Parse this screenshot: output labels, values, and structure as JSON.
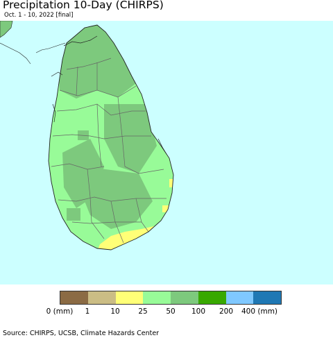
{
  "title": "Precipitation 10-Day (CHIRPS)",
  "subtitle": "Oct. 1 - 10, 2022 [final]",
  "source": "Source: CHIRPS, UCSB, Climate Hazards Center",
  "colors": {
    "ocean": "#ccffff",
    "coast": "#222222",
    "district_border": "#666666"
  },
  "legend": {
    "swatches": [
      {
        "range": "0-1",
        "color": "#8b6b44"
      },
      {
        "range": "1-10",
        "color": "#cbbd85"
      },
      {
        "range": "10-25",
        "color": "#ffff77"
      },
      {
        "range": "25-50",
        "color": "#98fb98"
      },
      {
        "range": "50-100",
        "color": "#7dc97d"
      },
      {
        "range": "100-200",
        "color": "#38a800"
      },
      {
        "range": "200-400",
        "color": "#7fc8ff"
      },
      {
        "range": "400+",
        "color": "#1f78b4"
      }
    ],
    "labels": [
      "0 (mm)",
      "1",
      "10",
      "25",
      "50",
      "100",
      "200",
      "400 (mm)"
    ]
  }
}
